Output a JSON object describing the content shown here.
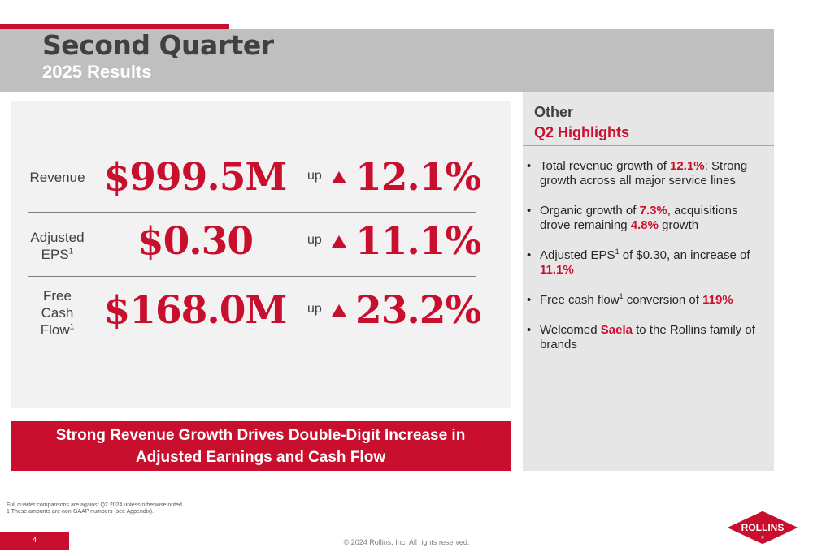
{
  "header": {
    "title": "Second Quarter",
    "subtitle": "2025 Results"
  },
  "metrics": [
    {
      "label": "Revenue",
      "value": "$999.5M",
      "up": "up",
      "pct": "12.1%"
    },
    {
      "label_line1": "Adjusted",
      "label_line2": "EPS",
      "label_sup": "1",
      "value": "$0.30",
      "up": "up",
      "pct": "11.1%"
    },
    {
      "label_line1": "Free",
      "label_line2": "Cash",
      "label_line3": "Flow",
      "label_sup": "1",
      "value": "$168.0M",
      "up": "up",
      "pct": "23.2%"
    }
  ],
  "banner": {
    "line1": "Strong Revenue Growth Drives Double-Digit Increase in",
    "line2": "Adjusted Earnings and Cash Flow"
  },
  "highlights": {
    "title": "Other",
    "subtitle": "Q2 Highlights",
    "b1": {
      "pre": "Total revenue growth of ",
      "hl": "12.1%",
      "post": "; Strong growth across all major service lines"
    },
    "b2": {
      "pre": "Organic growth of ",
      "hl1": "7.3%",
      "mid": ", acquisitions drove remaining ",
      "hl2": "4.8%",
      "post": " growth"
    },
    "b3": {
      "pre": "Adjusted EPS",
      "sup": "1",
      "mid": " of $0.30, an increase of ",
      "hl": "11.1%"
    },
    "b4": {
      "pre": "Free cash flow",
      "sup": "1",
      "mid": " conversion of ",
      "hl": "119%"
    },
    "b5": {
      "pre": "Welcomed ",
      "hl": "Saela",
      "post": " to the Rollins family of brands"
    }
  },
  "footnotes": {
    "line1": "Full quarter comparisons are against Q2 2024 unless otherwise noted.",
    "line2": "1 These amounts are non-GAAP numbers (see Appendix)."
  },
  "footer": {
    "page_number": "4",
    "copyright": "© 2024 Rollins, Inc. All rights reserved.",
    "logo_text": "ROLLINS",
    "logo_mark": "®"
  },
  "colors": {
    "accent": "#c8102e",
    "header_bg": "#bfbfbf",
    "panel_bg": "#f2f2f2",
    "side_bg": "#e6e6e6"
  }
}
